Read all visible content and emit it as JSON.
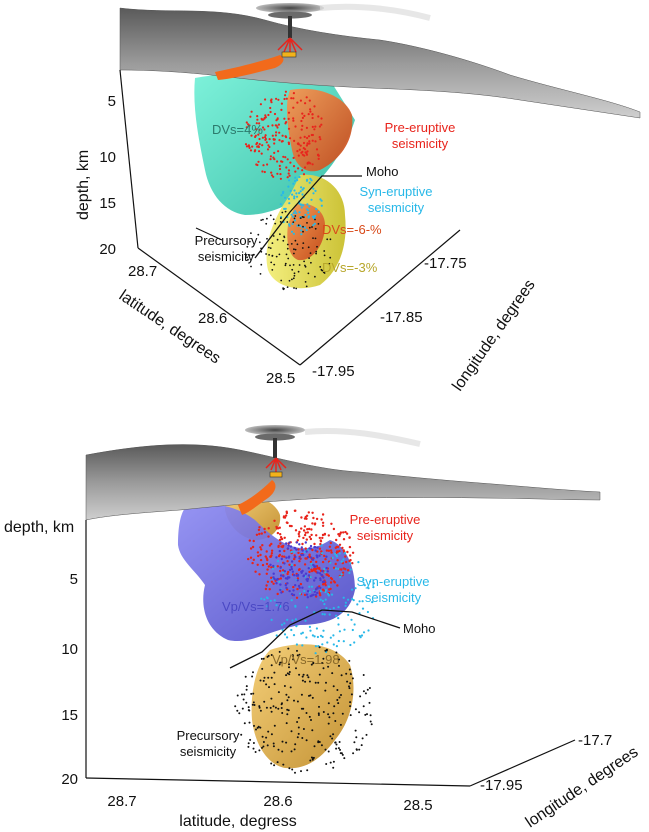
{
  "colors": {
    "pre_eruptive": "#e8241c",
    "syn_eruptive": "#28b8e8",
    "precursory": "#111111",
    "moho": "#111111",
    "dvs_pos_body": "#3fd9bf",
    "dvs_neg6_body": "#e0682a",
    "dvs_neg3_body": "#e3dc4a",
    "vpvs_low_body": "#6a68e0",
    "vpvs_high_body": "#e6b54a",
    "topography": "#8e8e8e",
    "lava": "#f26a1b"
  },
  "icons": [
    "eruption-plume-icon",
    "volcanic-vent-icon"
  ],
  "panel_top": {
    "depth_axis": {
      "label": "depth, km",
      "ticks": [
        "5",
        "10",
        "15",
        "20"
      ]
    },
    "latitude_axis": {
      "label": "latitude, degrees",
      "ticks": [
        "28.7",
        "28.6",
        "28.5"
      ]
    },
    "longitude_axis": {
      "label": "longitude, degrees",
      "ticks": [
        "-17.75",
        "-17.85",
        "-17.95"
      ]
    },
    "annotations": {
      "dvs_pos": "DVs=4%",
      "pre_eruptive": "Pre-eruptive seismicity",
      "moho": "Moho",
      "syn_eruptive": "Syn-eruptive seismicity",
      "precursory": "Precursory seismicity",
      "dvs_neg6": "DVs=-6-%",
      "dvs_neg3": "DVs=-3%"
    }
  },
  "panel_bottom": {
    "depth_axis": {
      "label": "depth, km",
      "ticks": [
        "5",
        "10",
        "15",
        "20"
      ]
    },
    "latitude_axis": {
      "label": "latitude, degress",
      "ticks": [
        "28.7",
        "28.6",
        "28.5"
      ]
    },
    "longitude_axis": {
      "label": "longitude, degrees",
      "ticks": [
        "-17.7",
        "-17.95"
      ]
    },
    "annotations": {
      "pre_eruptive": "Pre-eruptive seismicity",
      "syn_eruptive": "Syn-eruptive seismicity",
      "vpvs_low": "Vp/Vs=1.76",
      "moho": "Moho",
      "vpvs_high": "Vp/Vs=1.98",
      "precursory": "Precursory seismicity"
    }
  }
}
